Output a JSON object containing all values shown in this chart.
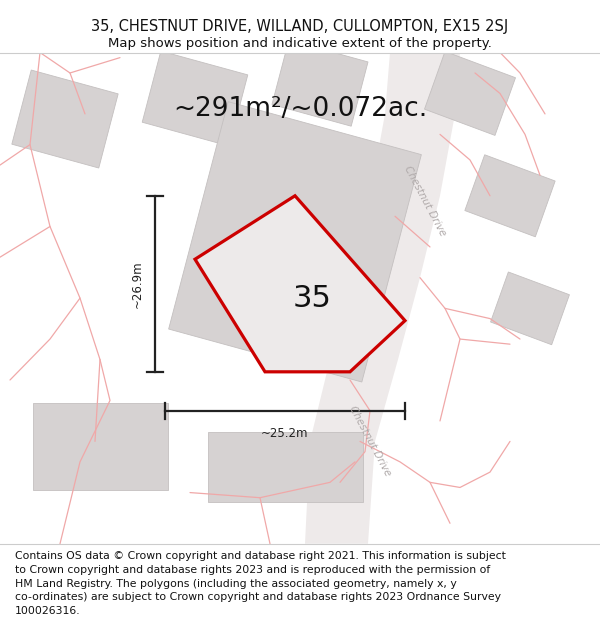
{
  "title_line1": "35, CHESTNUT DRIVE, WILLAND, CULLOMPTON, EX15 2SJ",
  "title_line2": "Map shows position and indicative extent of the property.",
  "area_text": "~291m²/~0.072ac.",
  "property_number": "35",
  "dim_vertical": "~26.9m",
  "dim_horizontal": "~25.2m",
  "footer_lines": [
    "Contains OS data © Crown copyright and database right 2021. This information is subject",
    "to Crown copyright and database rights 2023 and is reproduced with the permission of",
    "HM Land Registry. The polygons (including the associated geometry, namely x, y",
    "co-ordinates) are subject to Crown copyright and database rights 2023 Ordnance Survey",
    "100026316."
  ],
  "map_bg": "#f5f2f2",
  "road_bg": "#eeeaea",
  "building_fill": "#d6d2d2",
  "building_edge": "#c4c0c0",
  "prop_fill": "#edeaea",
  "prop_edge": "#cc0000",
  "pink_line": "#f0a8a8",
  "gray_road": "#dedad9",
  "road_label_color": "#b0aaaa",
  "dim_color": "#222222",
  "title_fs": 10.5,
  "sub_fs": 9.5,
  "area_fs": 19,
  "num_fs": 22,
  "footer_fs": 7.8,
  "road_label_fs": 7.5
}
